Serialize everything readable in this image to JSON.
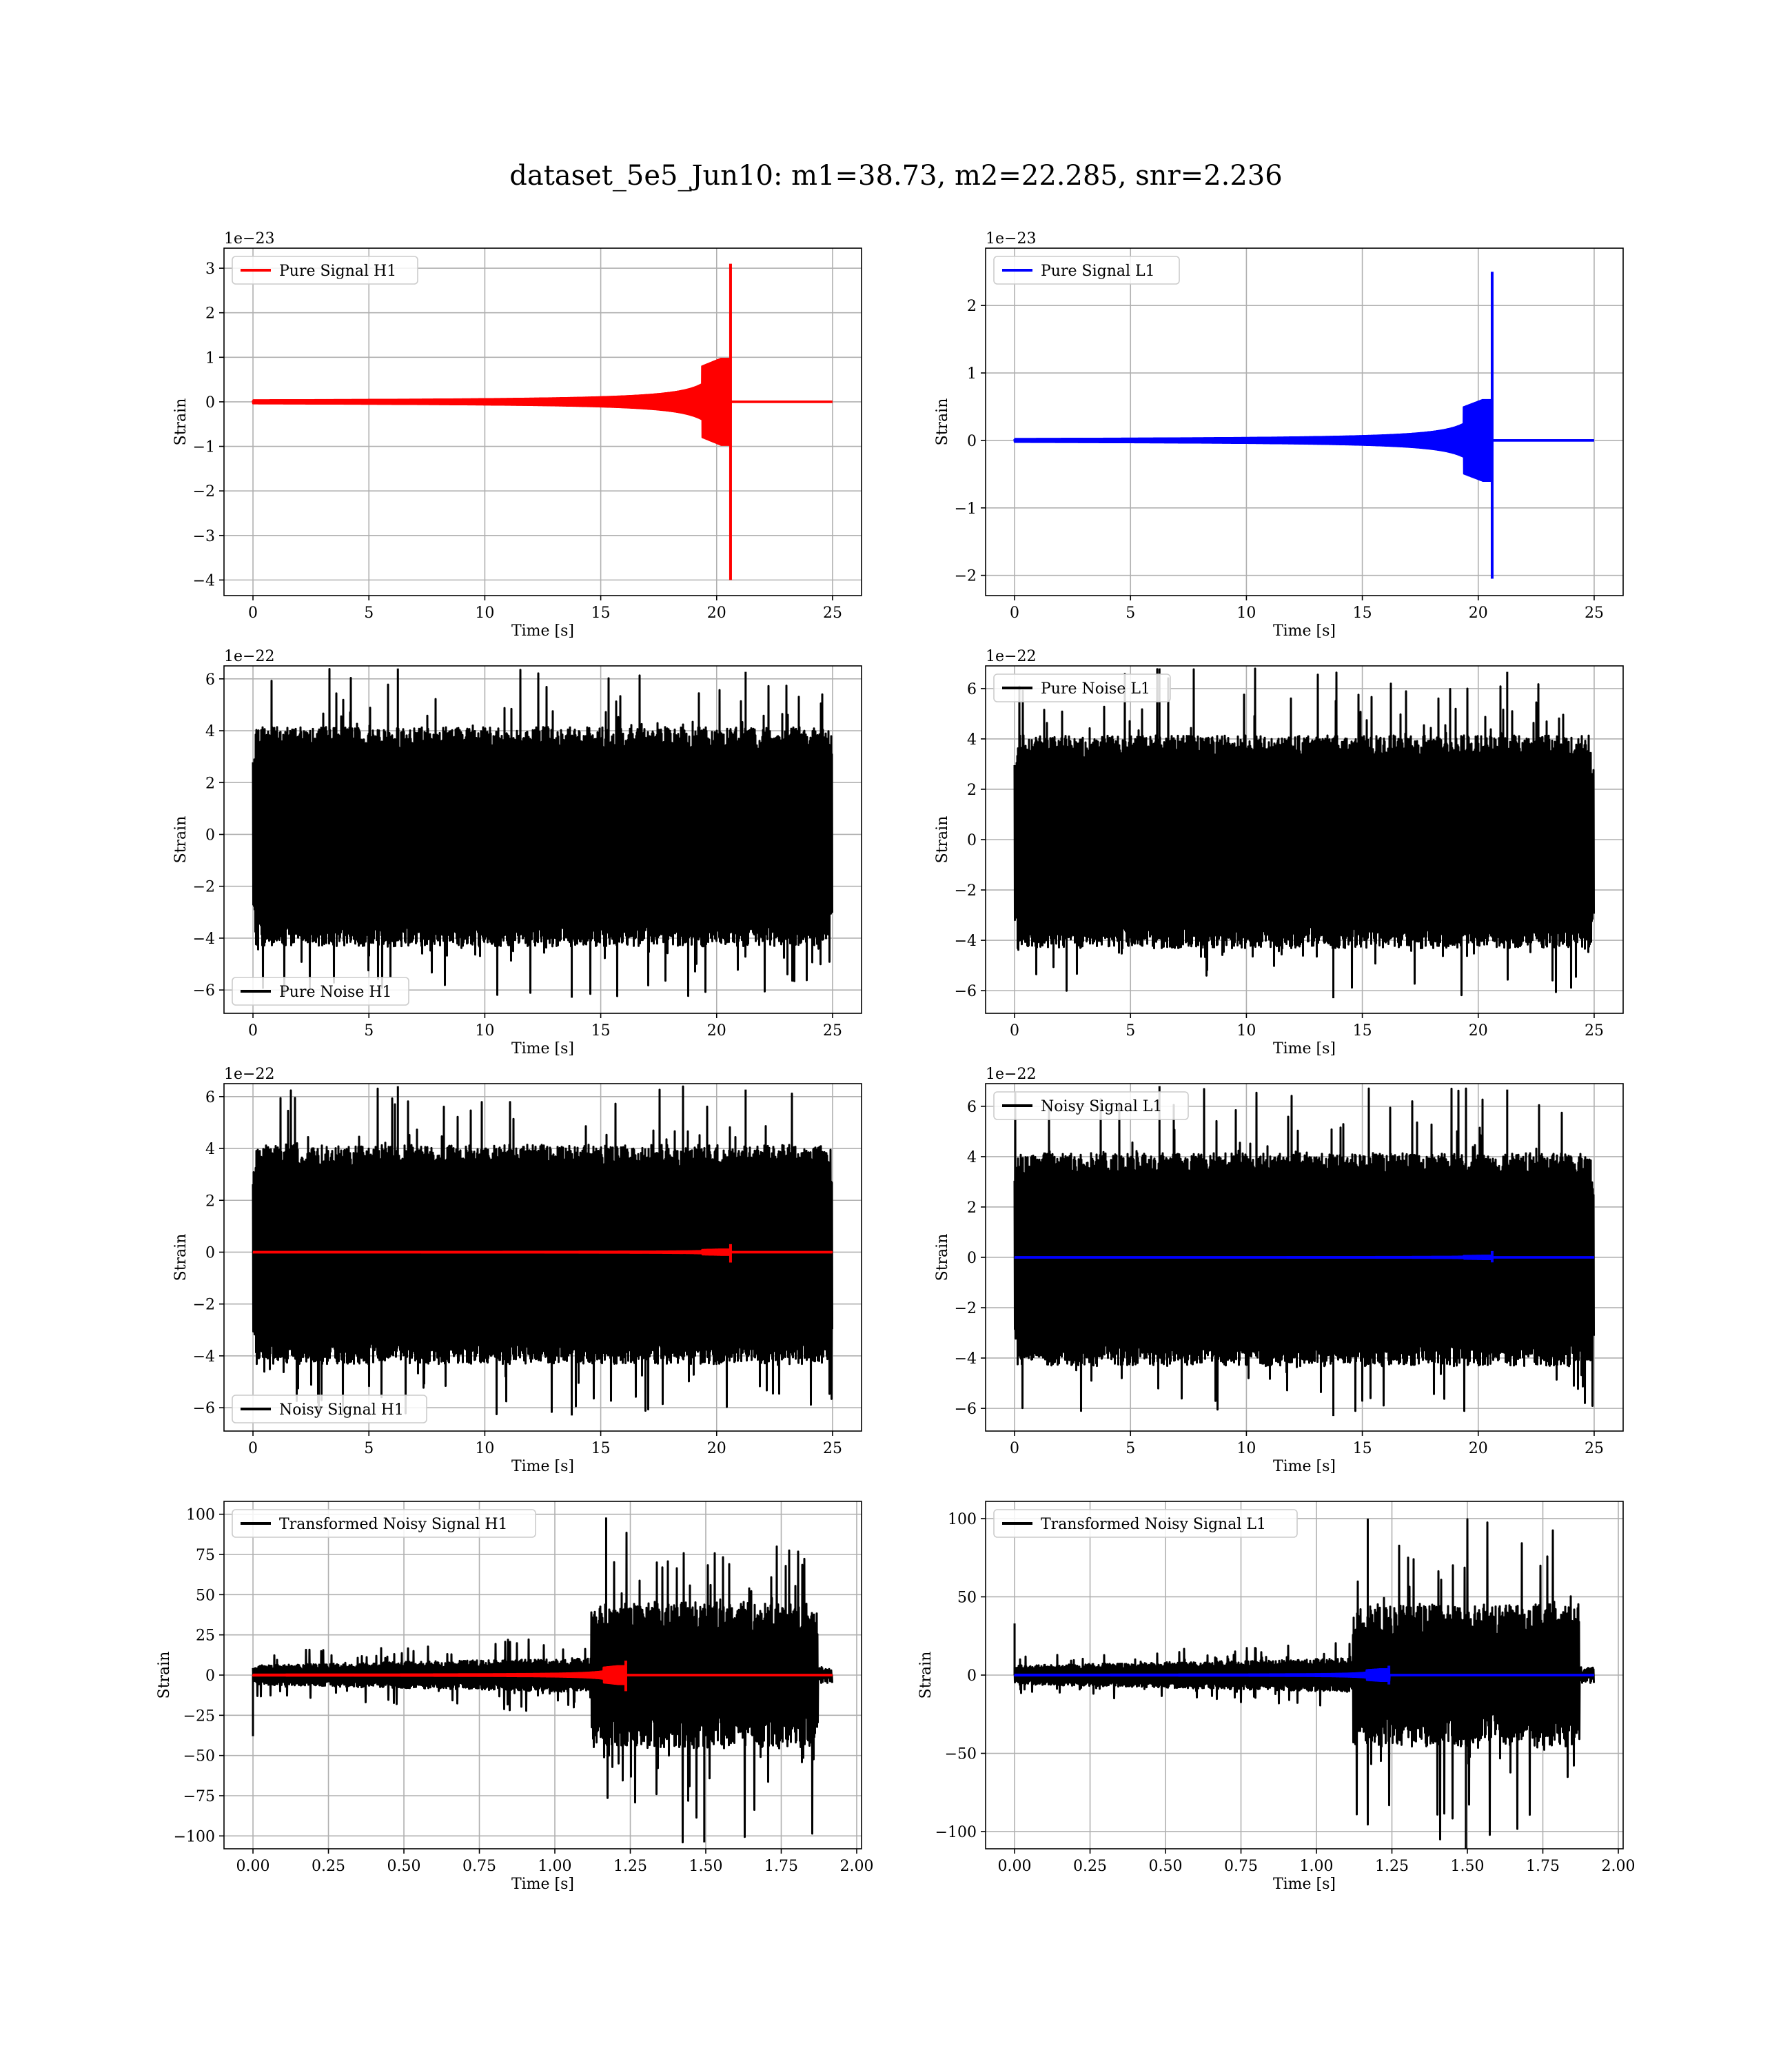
{
  "figure": {
    "title": "dataset_5e5_Jun10: m1=38.73, m2=22.285, snr=2.236"
  },
  "chart_data": [
    {
      "id": "pure-signal-h1",
      "type": "line",
      "xlabel": "Time [s]",
      "ylabel": "Strain",
      "offset_label": "1e−23",
      "xlim": [
        -1.25,
        26.25
      ],
      "ylim": [
        -4.35,
        3.45
      ],
      "xticks": [
        0,
        5,
        10,
        15,
        20,
        25
      ],
      "xtick_labels": [
        "0",
        "5",
        "10",
        "15",
        "20",
        "25"
      ],
      "yticks": [
        -4,
        -3,
        -2,
        -1,
        0,
        1,
        2,
        3
      ],
      "ytick_labels": [
        "−4",
        "−3",
        "−2",
        "−1",
        "0",
        "1",
        "2",
        "3"
      ],
      "grid": true,
      "legend_position": "upper-left",
      "series": [
        {
          "name": "Pure Signal H1",
          "color": "#ff0000",
          "kind": "chirp",
          "t_start": 0,
          "t_end": 25,
          "t_merger": 20.6,
          "amp_peak": 1.05,
          "spike_max": 3.1,
          "spike_min": -4.0,
          "tail": 0
        }
      ]
    },
    {
      "id": "pure-signal-l1",
      "type": "line",
      "xlabel": "Time [s]",
      "ylabel": "Strain",
      "offset_label": "1e−23",
      "xlim": [
        -1.25,
        26.25
      ],
      "ylim": [
        -2.3,
        2.85
      ],
      "xticks": [
        0,
        5,
        10,
        15,
        20,
        25
      ],
      "xtick_labels": [
        "0",
        "5",
        "10",
        "15",
        "20",
        "25"
      ],
      "yticks": [
        -2,
        -1,
        0,
        1,
        2
      ],
      "ytick_labels": [
        "−2",
        "−1",
        "0",
        "1",
        "2"
      ],
      "grid": true,
      "legend_position": "upper-left",
      "series": [
        {
          "name": "Pure Signal L1",
          "color": "#0000ff",
          "kind": "chirp",
          "t_start": 0,
          "t_end": 25,
          "t_merger": 20.6,
          "amp_peak": 0.65,
          "spike_max": 2.5,
          "spike_min": -2.05,
          "tail": 0
        }
      ]
    },
    {
      "id": "pure-noise-h1",
      "type": "line",
      "xlabel": "Time [s]",
      "ylabel": "Strain",
      "offset_label": "1e−22",
      "xlim": [
        -1.25,
        26.25
      ],
      "ylim": [
        -6.9,
        6.5
      ],
      "xticks": [
        0,
        5,
        10,
        15,
        20,
        25
      ],
      "xtick_labels": [
        "0",
        "5",
        "10",
        "15",
        "20",
        "25"
      ],
      "yticks": [
        -6,
        -4,
        -2,
        0,
        2,
        4,
        6
      ],
      "ytick_labels": [
        "−6",
        "−4",
        "−2",
        "0",
        "2",
        "4",
        "6"
      ],
      "grid": true,
      "legend_position": "lower-left",
      "series": [
        {
          "name": "Pure Noise H1",
          "color": "#000000",
          "kind": "noise",
          "t_start": 0,
          "t_end": 25,
          "band": 3.6,
          "peak_max": 6.4,
          "peak_min": -6.3
        }
      ]
    },
    {
      "id": "pure-noise-l1",
      "type": "line",
      "xlabel": "Time [s]",
      "ylabel": "Strain",
      "offset_label": "1e−22",
      "xlim": [
        -1.25,
        26.25
      ],
      "ylim": [
        -6.9,
        6.9
      ],
      "xticks": [
        0,
        5,
        10,
        15,
        20,
        25
      ],
      "xtick_labels": [
        "0",
        "5",
        "10",
        "15",
        "20",
        "25"
      ],
      "yticks": [
        -6,
        -4,
        -2,
        0,
        2,
        4,
        6
      ],
      "ytick_labels": [
        "−6",
        "−4",
        "−2",
        "0",
        "2",
        "4",
        "6"
      ],
      "grid": true,
      "legend_position": "upper-left",
      "series": [
        {
          "name": "Pure Noise L1",
          "color": "#000000",
          "kind": "noise",
          "t_start": 0,
          "t_end": 25,
          "band": 3.6,
          "peak_max": 6.8,
          "peak_min": -6.3
        }
      ]
    },
    {
      "id": "noisy-signal-h1",
      "type": "line",
      "xlabel": "Time [s]",
      "ylabel": "Strain",
      "offset_label": "1e−22",
      "xlim": [
        -1.25,
        26.25
      ],
      "ylim": [
        -6.9,
        6.5
      ],
      "xticks": [
        0,
        5,
        10,
        15,
        20,
        25
      ],
      "xtick_labels": [
        "0",
        "5",
        "10",
        "15",
        "20",
        "25"
      ],
      "yticks": [
        -6,
        -4,
        -2,
        0,
        2,
        4,
        6
      ],
      "ytick_labels": [
        "−6",
        "−4",
        "−2",
        "0",
        "2",
        "4",
        "6"
      ],
      "grid": true,
      "legend_position": "lower-left",
      "series": [
        {
          "name": "Noisy Signal H1",
          "color": "#000000",
          "kind": "noise",
          "t_start": 0,
          "t_end": 25,
          "band": 3.6,
          "peak_max": 6.4,
          "peak_min": -6.3
        },
        {
          "name": "",
          "color": "#ff0000",
          "kind": "chirp",
          "t_start": 0,
          "t_end": 25,
          "t_merger": 20.6,
          "amp_peak": 0.105,
          "spike_max": 0.31,
          "spike_min": -0.4,
          "tail": 0
        }
      ]
    },
    {
      "id": "noisy-signal-l1",
      "type": "line",
      "xlabel": "Time [s]",
      "ylabel": "Strain",
      "offset_label": "1e−22",
      "xlim": [
        -1.25,
        26.25
      ],
      "ylim": [
        -6.9,
        6.9
      ],
      "xticks": [
        0,
        5,
        10,
        15,
        20,
        25
      ],
      "xtick_labels": [
        "0",
        "5",
        "10",
        "15",
        "20",
        "25"
      ],
      "yticks": [
        -6,
        -4,
        -2,
        0,
        2,
        4,
        6
      ],
      "ytick_labels": [
        "−6",
        "−4",
        "−2",
        "0",
        "2",
        "4",
        "6"
      ],
      "grid": true,
      "legend_position": "upper-left",
      "series": [
        {
          "name": "Noisy Signal L1",
          "color": "#000000",
          "kind": "noise",
          "t_start": 0,
          "t_end": 25,
          "band": 3.6,
          "peak_max": 6.8,
          "peak_min": -6.3
        },
        {
          "name": "",
          "color": "#0000ff",
          "kind": "chirp",
          "t_start": 0,
          "t_end": 25,
          "t_merger": 20.6,
          "amp_peak": 0.065,
          "spike_max": 0.25,
          "spike_min": -0.2,
          "tail": 0
        }
      ]
    },
    {
      "id": "transformed-noisy-signal-h1",
      "type": "line",
      "xlabel": "Time [s]",
      "ylabel": "Strain",
      "offset_label": "",
      "xlim": [
        -0.096,
        2.016
      ],
      "ylim": [
        -108,
        108
      ],
      "xticks": [
        0,
        0.25,
        0.5,
        0.75,
        1.0,
        1.25,
        1.5,
        1.75,
        2.0
      ],
      "xtick_labels": [
        "0.00",
        "0.25",
        "0.50",
        "0.75",
        "1.00",
        "1.25",
        "1.50",
        "1.75",
        "2.00"
      ],
      "yticks": [
        -100,
        -75,
        -50,
        -25,
        0,
        25,
        50,
        75,
        100
      ],
      "ytick_labels": [
        "−100",
        "−75",
        "−50",
        "−25",
        "0",
        "25",
        "50",
        "75",
        "100"
      ],
      "grid": true,
      "legend_position": "upper-left",
      "series": [
        {
          "name": "Transformed Noisy Signal H1",
          "color": "#000000",
          "kind": "whitened",
          "t_start": 0,
          "t_end": 1.92,
          "t_jump": 1.12,
          "t_drop": 1.87,
          "low_band": 5,
          "low_peak": 14,
          "high_band": 38,
          "high_max": 98,
          "high_min": -104,
          "start_spike": -38
        },
        {
          "name": "",
          "color": "#ff0000",
          "kind": "chirp",
          "t_start": 0,
          "t_end": 1.92,
          "t_merger": 1.235,
          "amp_peak": 6,
          "spike_max": 9,
          "spike_min": -10,
          "tail": 0
        }
      ]
    },
    {
      "id": "transformed-noisy-signal-l1",
      "type": "line",
      "xlabel": "Time [s]",
      "ylabel": "Strain",
      "offset_label": "",
      "xlim": [
        -0.096,
        2.016
      ],
      "ylim": [
        -111,
        111
      ],
      "xticks": [
        0,
        0.25,
        0.5,
        0.75,
        1.0,
        1.25,
        1.5,
        1.75,
        2.0
      ],
      "xtick_labels": [
        "0.00",
        "0.25",
        "0.50",
        "0.75",
        "1.00",
        "1.25",
        "1.50",
        "1.75",
        "2.00"
      ],
      "yticks": [
        -100,
        -50,
        0,
        50,
        100
      ],
      "ytick_labels": [
        "−100",
        "−50",
        "0",
        "50",
        "100"
      ],
      "grid": true,
      "legend_position": "upper-left",
      "series": [
        {
          "name": "Transformed Noisy Signal L1",
          "color": "#000000",
          "kind": "whitened",
          "t_start": 0,
          "t_end": 1.92,
          "t_jump": 1.12,
          "t_drop": 1.87,
          "low_band": 5,
          "low_peak": 12,
          "high_band": 38,
          "high_max": 100,
          "high_min": -111,
          "start_spike": 33
        },
        {
          "name": "",
          "color": "#0000ff",
          "kind": "chirp",
          "t_start": 0,
          "t_end": 1.92,
          "t_merger": 1.24,
          "amp_peak": 4,
          "spike_max": 6,
          "spike_min": -6,
          "tail": 0
        }
      ]
    }
  ]
}
